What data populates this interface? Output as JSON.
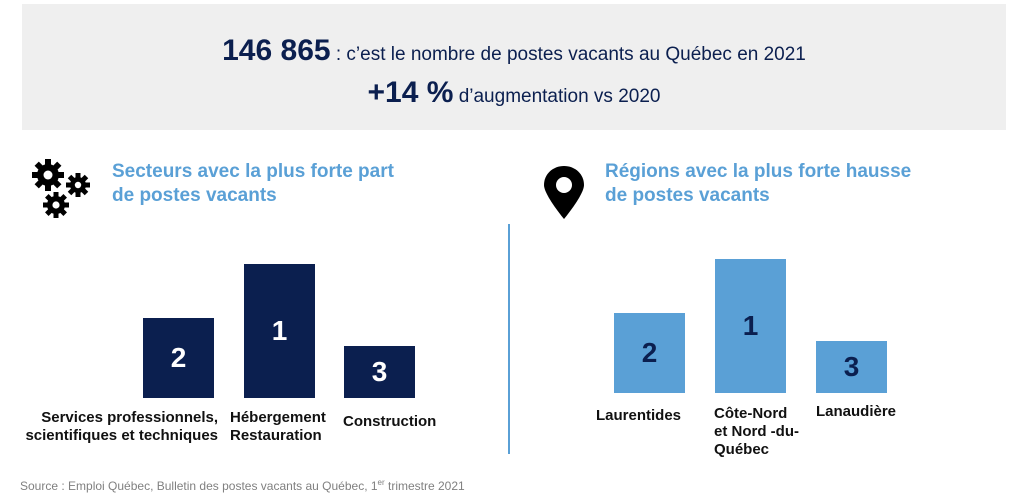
{
  "header": {
    "stat1_value": "146 865",
    "stat1_text": " : c’est le nombre de postes vacants au Québec en 2021",
    "stat2_value": "+14 %",
    "stat2_text": " d’augmentation vs 2020"
  },
  "left": {
    "title_line1": "Secteurs avec la plus forte part",
    "title_line2": "de postes vacants",
    "icon": "gears-icon"
  },
  "right": {
    "title_line1": "Régions avec la plus forte hausse",
    "title_line2": "de postes vacants",
    "icon": "map-pin-icon"
  },
  "source": {
    "prefix": "Source : Emploi Québec, Bulletin des postes vacants au Québec, 1",
    "sup": "er",
    "suffix": " trimestre 2021"
  },
  "colors": {
    "dark": "#0b1f4f",
    "light": "#5aa0d6"
  },
  "chart_data": [
    {
      "type": "bar",
      "categories": [
        "Services professionnels, scientifiques et techniques",
        "Hébergement Restauration",
        "Construction"
      ],
      "values": [
        2,
        1,
        3
      ],
      "data_labels": [
        "2",
        "1",
        "3"
      ],
      "color": "#0b1f4f"
    },
    {
      "type": "bar",
      "categories": [
        "Laurentides",
        "Côte-Nord et Nord -du-Québec",
        "Lanaudière"
      ],
      "values": [
        2,
        1,
        3
      ],
      "data_labels": [
        "2",
        "1",
        "3"
      ],
      "color": "#5aa0d6"
    }
  ]
}
